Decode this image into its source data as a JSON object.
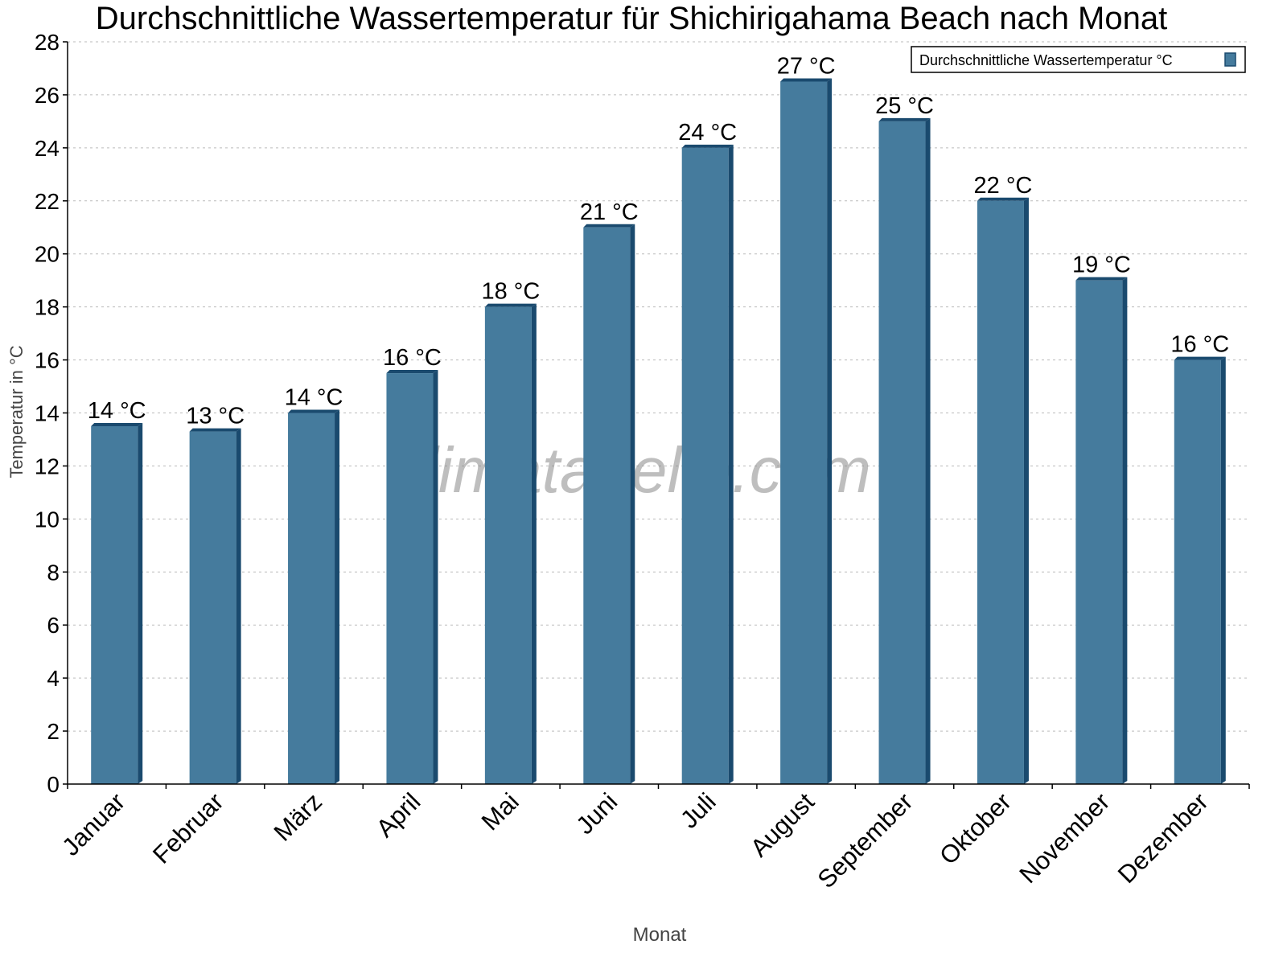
{
  "chart_data": {
    "type": "bar",
    "title": "Durchschnittliche Wassertemperatur für Shichirigahama Beach nach Monat",
    "xlabel": "Monat",
    "ylabel": "Temperatur in °C",
    "ylim": [
      0,
      28
    ],
    "yticks": [
      0,
      2,
      4,
      6,
      8,
      10,
      12,
      14,
      16,
      18,
      20,
      22,
      24,
      26,
      28
    ],
    "grid": true,
    "legend_placement": "top-right",
    "categories": [
      "Januar",
      "Februar",
      "März",
      "April",
      "Mai",
      "Juni",
      "Juli",
      "August",
      "September",
      "Oktober",
      "November",
      "Dezember"
    ],
    "series": [
      {
        "name": "Durchschnittliche Wassertemperatur °C",
        "values": [
          13.5,
          13.3,
          14.0,
          15.5,
          18.0,
          21.0,
          24.0,
          26.5,
          25.0,
          22.0,
          19.0,
          16.0
        ],
        "data_labels": [
          "14 °C",
          "13 °C",
          "14 °C",
          "16 °C",
          "18 °C",
          "21 °C",
          "24 °C",
          "27 °C",
          "25 °C",
          "22 °C",
          "19 °C",
          "16 °C"
        ],
        "color": "#457b9d",
        "side_color": "#1a4a6e"
      }
    ],
    "watermark": "klimatabelle.com"
  }
}
